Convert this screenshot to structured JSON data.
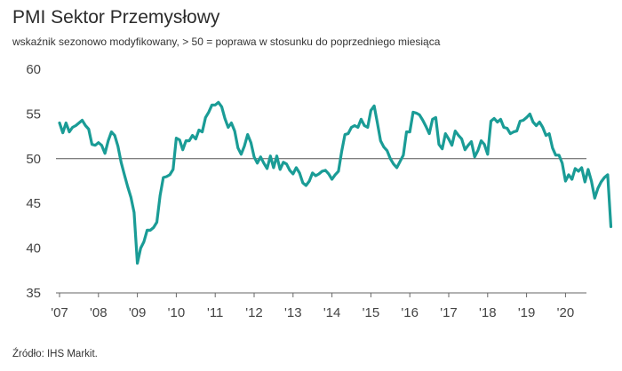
{
  "chart_data": {
    "type": "line",
    "title": "PMI Sektor Przemysłowy",
    "subtitle": "wskaźnik sezonowo modyfikowany, > 50 = poprawa w stosunku do poprzedniego miesiąca",
    "source": "Źródło:  IHS Markit.",
    "xlabel": "",
    "ylabel": "",
    "ylim": [
      35,
      60
    ],
    "yticks": [
      35,
      40,
      45,
      50,
      55,
      60
    ],
    "reference_line": 50,
    "x_tick_labels": [
      "'07",
      "'08",
      "'09",
      "'10",
      "'11",
      "'12",
      "'13",
      "'14",
      "'15",
      "'16",
      "'17",
      "'18",
      "'19",
      "'20"
    ],
    "x_start": "2007-01",
    "grid": false,
    "series": [
      {
        "name": "",
        "color": "#1a9c96",
        "values": [
          54.0,
          52.9,
          54.0,
          53.0,
          53.5,
          53.7,
          54.0,
          54.3,
          53.7,
          53.3,
          51.6,
          51.5,
          51.8,
          51.5,
          50.6,
          52.0,
          53.0,
          52.6,
          51.4,
          49.6,
          48.2,
          46.9,
          45.7,
          44.0,
          38.3,
          40.0,
          40.7,
          42.0,
          42.0,
          42.3,
          42.9,
          45.9,
          47.9,
          48.0,
          48.2,
          48.8,
          52.3,
          52.1,
          51.0,
          52.0,
          52.0,
          52.6,
          52.2,
          53.2,
          53.0,
          54.6,
          55.2,
          56.0,
          56.0,
          56.3,
          55.8,
          54.5,
          53.5,
          54.0,
          53.1,
          51.2,
          50.5,
          51.4,
          52.7,
          51.8,
          50.2,
          49.5,
          50.2,
          49.5,
          48.9,
          50.3,
          49.0,
          50.3,
          48.8,
          49.6,
          49.4,
          48.7,
          48.3,
          49.0,
          48.4,
          47.3,
          47.0,
          47.5,
          48.4,
          48.1,
          48.3,
          48.6,
          48.7,
          48.3,
          47.7,
          48.2,
          48.6,
          50.8,
          52.7,
          52.8,
          53.5,
          53.7,
          53.5,
          54.4,
          53.7,
          53.5,
          55.4,
          55.9,
          54.0,
          52.0,
          51.3,
          50.9,
          50.0,
          49.4,
          49.0,
          49.7,
          50.4,
          53.0,
          53.0,
          55.2,
          55.1,
          54.9,
          54.3,
          53.6,
          52.8,
          54.4,
          54.6,
          51.6,
          51.1,
          52.8,
          52.2,
          51.5,
          53.1,
          52.6,
          52.2,
          51.0,
          51.5,
          51.9,
          50.2,
          50.9,
          52.0,
          51.6,
          50.5,
          54.2,
          54.5,
          54.1,
          54.4,
          53.5,
          53.4,
          52.8,
          53.0,
          53.1,
          54.2,
          54.3,
          54.6,
          55.0,
          54.1,
          53.7,
          54.1,
          53.5,
          52.6,
          52.8,
          51.2,
          50.4,
          50.4,
          49.5,
          47.5,
          48.2,
          47.7,
          48.9,
          48.6,
          49.0,
          47.4,
          48.8,
          47.5,
          45.6,
          46.7,
          47.4,
          47.9,
          48.2,
          42.4
        ]
      }
    ]
  }
}
